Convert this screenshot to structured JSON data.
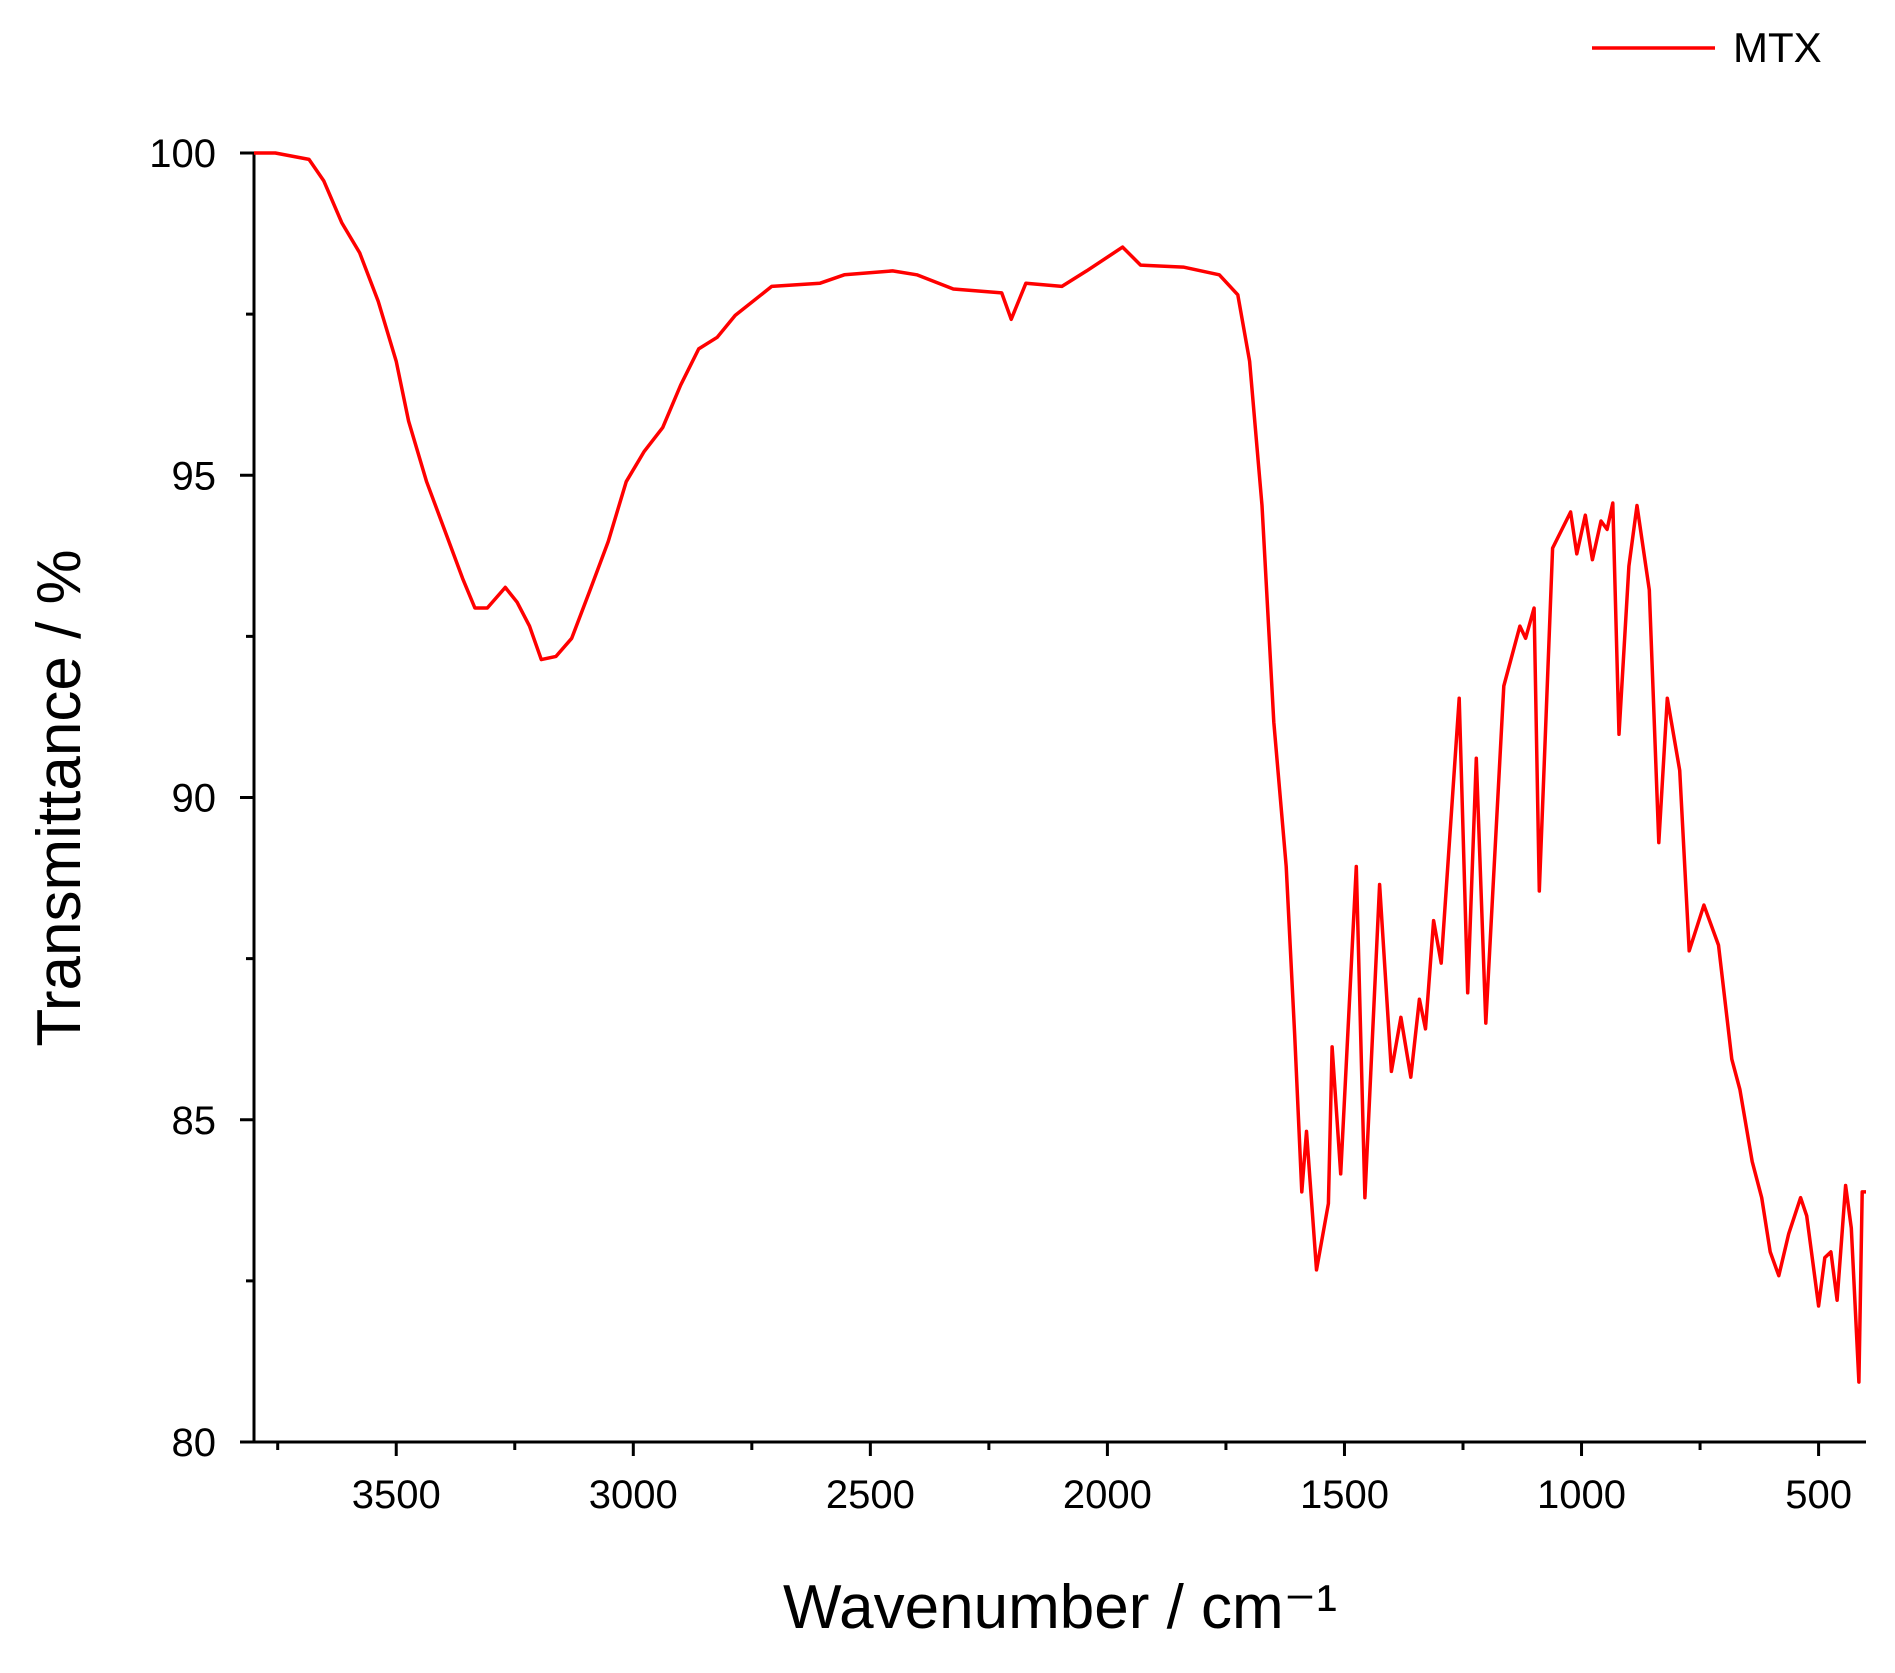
{
  "chart_data": {
    "type": "line",
    "xlabel": "Wavenumber / cm⁻¹",
    "ylabel": "Transmittance / %",
    "xlim": [
      3800,
      400
    ],
    "ylim": [
      80,
      100
    ],
    "xticks": [
      3500,
      3000,
      2500,
      2000,
      1500,
      1000,
      500
    ],
    "yticks": [
      80,
      85,
      90,
      95,
      100
    ],
    "minor_ticks": true,
    "legend": "top-right",
    "x": [
      3800,
      3755,
      3684,
      3653,
      3615,
      3577,
      3538,
      3500,
      3474,
      3436,
      3398,
      3360,
      3334,
      3308,
      3270,
      3245,
      3219,
      3194,
      3163,
      3130,
      3091,
      3053,
      3015,
      2977,
      2938,
      2900,
      2862,
      2823,
      2785,
      2708,
      2606,
      2555,
      2453,
      2402,
      2325,
      2223,
      2203,
      2172,
      2096,
      2044,
      1968,
      1930,
      1840,
      1764,
      1725,
      1700,
      1674,
      1649,
      1623,
      1605,
      1590,
      1580,
      1559,
      1534,
      1526,
      1508,
      1475,
      1457,
      1426,
      1401,
      1381,
      1360,
      1342,
      1329,
      1312,
      1296,
      1258,
      1240,
      1222,
      1202,
      1164,
      1130,
      1118,
      1100,
      1089,
      1061,
      1023,
      1010,
      992,
      977,
      959,
      946,
      934,
      921,
      900,
      883,
      857,
      837,
      819,
      793,
      773,
      742,
      711,
      683,
      666,
      640,
      620,
      602,
      584,
      563,
      538,
      525,
      500,
      487,
      474,
      461,
      443,
      431,
      415,
      408,
      400
    ],
    "series": [
      {
        "name": "MTX",
        "color": "#ff0000",
        "values": [
          100,
          100,
          99.9,
          99.57,
          98.92,
          98.45,
          97.7,
          96.77,
          95.84,
          94.9,
          94.15,
          93.4,
          92.94,
          92.94,
          93.26,
          93.03,
          92.66,
          92.14,
          92.19,
          92.47,
          93.22,
          93.97,
          94.9,
          95.37,
          95.74,
          96.4,
          96.96,
          97.14,
          97.48,
          97.93,
          97.98,
          98.11,
          98.17,
          98.11,
          97.89,
          97.83,
          97.42,
          97.98,
          97.93,
          98.17,
          98.54,
          98.26,
          98.23,
          98.11,
          97.8,
          96.77,
          94.53,
          91.17,
          88.93,
          86.31,
          83.88,
          84.82,
          82.67,
          83.7,
          86.13,
          84.16,
          88.93,
          83.79,
          88.65,
          85.75,
          86.59,
          85.66,
          86.87,
          86.41,
          88.09,
          87.43,
          91.54,
          86.97,
          90.61,
          86.5,
          91.73,
          92.66,
          92.47,
          92.94,
          88.55,
          93.87,
          94.43,
          93.78,
          94.38,
          93.69,
          94.29,
          94.16,
          94.57,
          90.98,
          93.59,
          94.53,
          93.22,
          89.3,
          91.54,
          90.42,
          87.62,
          88.33,
          87.71,
          85.94,
          85.47,
          84.35,
          83.79,
          82.95,
          82.58,
          83.23,
          83.79,
          83.51,
          82.11,
          82.86,
          82.95,
          82.2,
          83.98,
          83.32,
          80.93,
          83.88,
          83.88
        ]
      }
    ]
  }
}
